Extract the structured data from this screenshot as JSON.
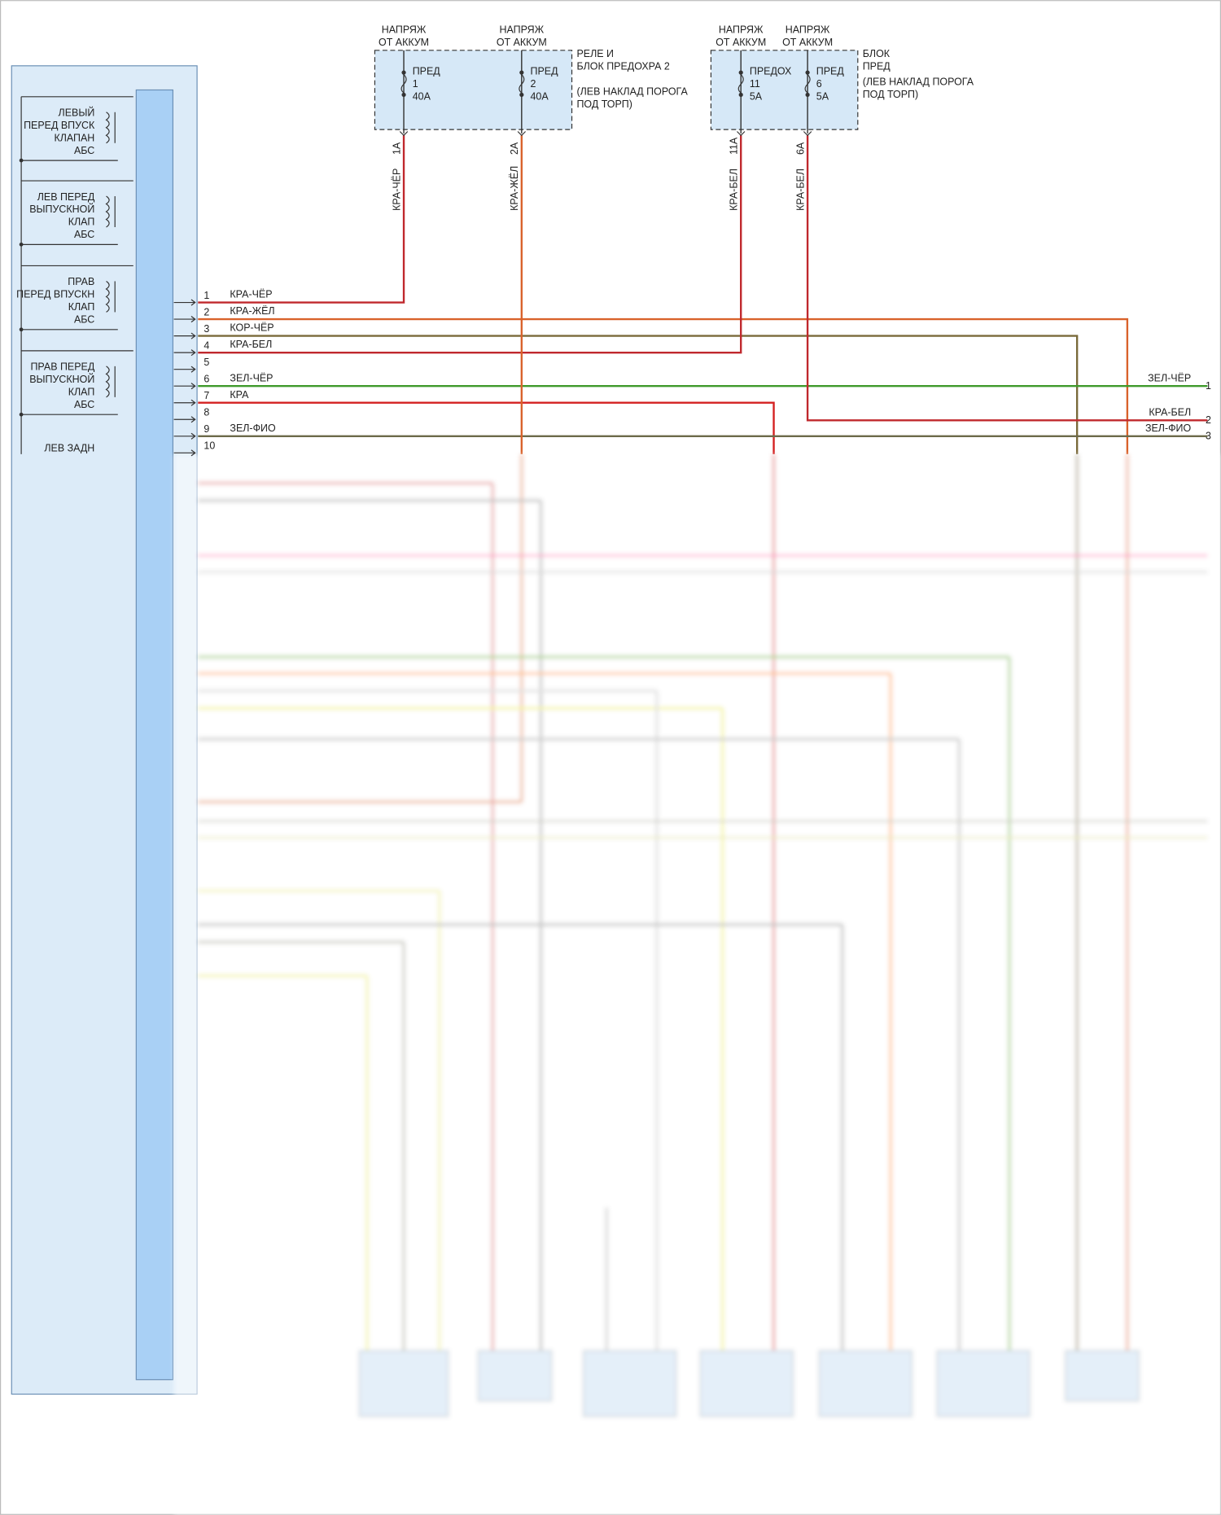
{
  "power_sources": [
    [
      "НАПРЯЖ",
      "ОТ АККУМ"
    ],
    [
      "НАПРЯЖ",
      "ОТ АККУМ"
    ],
    [
      "НАПРЯЖ",
      "ОТ АККУМ"
    ],
    [
      "НАПРЯЖ",
      "ОТ АККУМ"
    ]
  ],
  "relay_box": {
    "title_lines": [
      "РЕЛЕ И",
      "БЛОК ПРЕДОХРА 2"
    ],
    "location_lines": [
      "(ЛЕВ НАКЛАД ПОРОГА",
      "ПОД ТОРП)"
    ],
    "fuses": [
      {
        "lines": [
          "ПРЕД",
          "1",
          "40A"
        ],
        "pin": "1A",
        "wire": "КРА-ЧЁР"
      },
      {
        "lines": [
          "ПРЕД",
          "2",
          "40A"
        ],
        "pin": "2A",
        "wire": "КРА-ЖЁЛ"
      }
    ]
  },
  "fuse_block": {
    "title_lines": [
      "БЛОК",
      "ПРЕД"
    ],
    "location_lines": [
      "(ЛЕВ НАКЛАД ПОРОГА",
      "ПОД ТОРП)"
    ],
    "fuses": [
      {
        "lines": [
          "ПРЕДОХ",
          "11",
          "5A"
        ],
        "pin": "11A",
        "wire": "КРА-БЕЛ"
      },
      {
        "lines": [
          "ПРЕД",
          "6",
          "5A"
        ],
        "pin": "6A",
        "wire": "КРА-БЕЛ"
      }
    ]
  },
  "abs_components": [
    [
      "ЛЕВЫЙ",
      "ПЕРЕД ВПУСК",
      "КЛАПАН",
      "АБС"
    ],
    [
      "ЛЕВ ПЕРЕД",
      "ВЫПУСКНОЙ",
      "КЛАП",
      "АБС"
    ],
    [
      "ПРАВ",
      "ПЕРЕД ВПУСКН",
      "КЛАП",
      "АБС"
    ],
    [
      "ПРАВ ПЕРЕД",
      "ВЫПУСКНОЙ",
      "КЛАП",
      "АБС"
    ],
    [
      "ЛЕВ ЗАДН"
    ]
  ],
  "pins": [
    {
      "number": "1",
      "wire": "КРА-ЧЁР"
    },
    {
      "number": "2",
      "wire": "КРА-ЖЁЛ"
    },
    {
      "number": "3",
      "wire": "КОР-ЧЁР"
    },
    {
      "number": "4",
      "wire": "КРА-БЕЛ"
    },
    {
      "number": "5"
    },
    {
      "number": "6",
      "wire": "ЗЕЛ-ЧЁР"
    },
    {
      "number": "7",
      "wire": "КРА"
    },
    {
      "number": "8"
    },
    {
      "number": "9",
      "wire": "ЗЕЛ-ФИО"
    },
    {
      "number": "10"
    }
  ],
  "right_connector": [
    {
      "wire": "ЗЕЛ-ЧЁР",
      "pin": "1"
    },
    {
      "wire": "КРА-БЕЛ",
      "pin": "2"
    },
    {
      "wire": "ЗЕЛ-ФИО",
      "pin": "3"
    }
  ]
}
